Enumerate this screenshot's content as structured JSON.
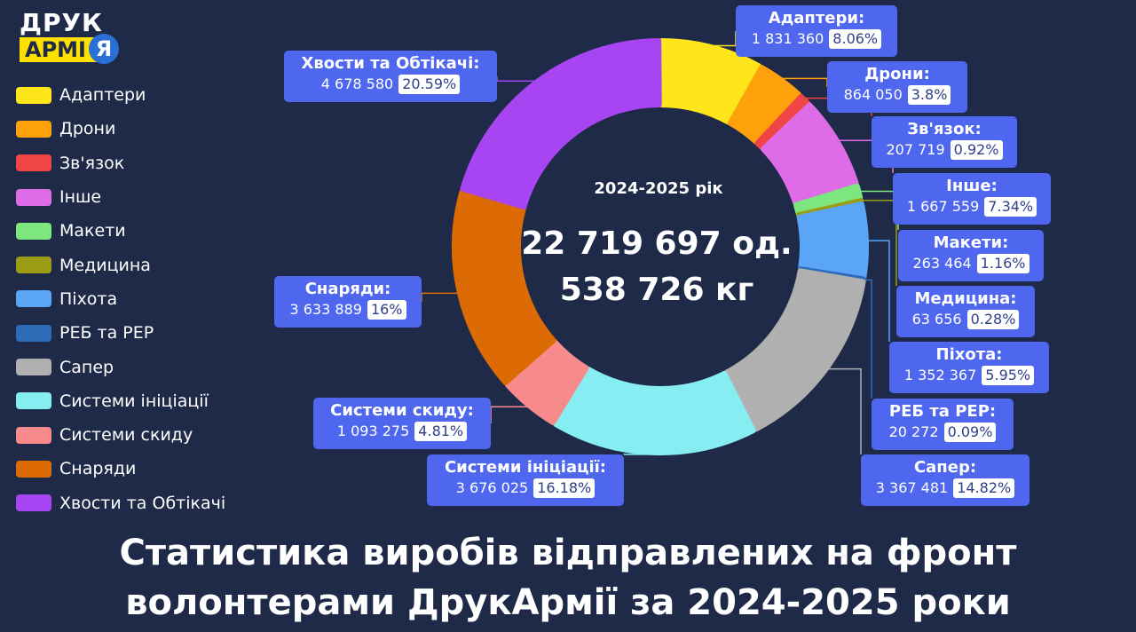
{
  "brand": {
    "line1": "ДРУК",
    "line2": "АРМІ",
    "line3": "Я"
  },
  "legend": [
    {
      "label": "Адаптери",
      "color": "#ffe61a"
    },
    {
      "label": "Дрони",
      "color": "#ffa10a"
    },
    {
      "label": "Зв'язок",
      "color": "#f04545"
    },
    {
      "label": "Інше",
      "color": "#de6ce6"
    },
    {
      "label": "Макети",
      "color": "#7ee67e"
    },
    {
      "label": "Медицина",
      "color": "#9c9c14"
    },
    {
      "label": "Піхота",
      "color": "#5aa5f5"
    },
    {
      "label": "РЕБ та РЕР",
      "color": "#2e6bb7"
    },
    {
      "label": "Сапер",
      "color": "#b0b0b0"
    },
    {
      "label": "Системи ініціації",
      "color": "#86eef2"
    },
    {
      "label": "Системи скиду",
      "color": "#f78a8a"
    },
    {
      "label": "Снаряди",
      "color": "#dc6a05"
    },
    {
      "label": "Хвости та Обтікачі",
      "color": "#a745f2"
    }
  ],
  "center": {
    "year": "2024-2025 рік",
    "units": "22 719 697 од.",
    "weight": "538 726 кг"
  },
  "chart_data": {
    "type": "pie",
    "donut": true,
    "slices": [
      {
        "label": "Адаптери",
        "value": 1831360,
        "value_text": "1 831 360",
        "percent": 8.06,
        "percent_text": "8.06%",
        "color": "#ffe61a"
      },
      {
        "label": "Дрони",
        "value": 864050,
        "value_text": "864 050",
        "percent": 3.8,
        "percent_text": "3.8%",
        "color": "#ffa10a"
      },
      {
        "label": "Зв'язок",
        "value": 207719,
        "value_text": "207 719",
        "percent": 0.92,
        "percent_text": "0.92%",
        "color": "#f04545"
      },
      {
        "label": "Інше",
        "value": 1667559,
        "value_text": "1 667 559",
        "percent": 7.34,
        "percent_text": "7.34%",
        "color": "#de6ce6"
      },
      {
        "label": "Макети",
        "value": 263464,
        "value_text": "263 464",
        "percent": 1.16,
        "percent_text": "1.16%",
        "color": "#7ee67e"
      },
      {
        "label": "Медицина",
        "value": 63656,
        "value_text": "63 656",
        "percent": 0.28,
        "percent_text": "0.28%",
        "color": "#9c9c14"
      },
      {
        "label": "Піхота",
        "value": 1352367,
        "value_text": "1 352 367",
        "percent": 5.95,
        "percent_text": "5.95%",
        "color": "#5aa5f5"
      },
      {
        "label": "РЕБ та РЕР",
        "value": 20272,
        "value_text": "20 272",
        "percent": 0.09,
        "percent_text": "0.09%",
        "color": "#2e6bb7"
      },
      {
        "label": "Сапер",
        "value": 3367481,
        "value_text": "3 367 481",
        "percent": 14.82,
        "percent_text": "14.82%",
        "color": "#b0b0b0"
      },
      {
        "label": "Системи ініціації",
        "value": 3676025,
        "value_text": "3 676 025",
        "percent": 16.18,
        "percent_text": "16.18%",
        "color": "#86eef2"
      },
      {
        "label": "Системи скиду",
        "value": 1093275,
        "value_text": "1 093 275",
        "percent": 4.81,
        "percent_text": "4.81%",
        "color": "#f78a8a"
      },
      {
        "label": "Снаряди",
        "value": 3633889,
        "value_text": "3 633 889",
        "percent": 16,
        "percent_text": "16%",
        "color": "#dc6a05"
      },
      {
        "label": "Хвости та Обтікачі",
        "value": 4678580,
        "value_text": "4 678 580",
        "percent": 20.59,
        "percent_text": "20.59%",
        "color": "#a745f2"
      }
    ]
  },
  "footer": {
    "line1": "Статистика виробів відправлених на фронт",
    "line2": "волонтерами ДрукАрмії за 2024-2025 роки"
  }
}
